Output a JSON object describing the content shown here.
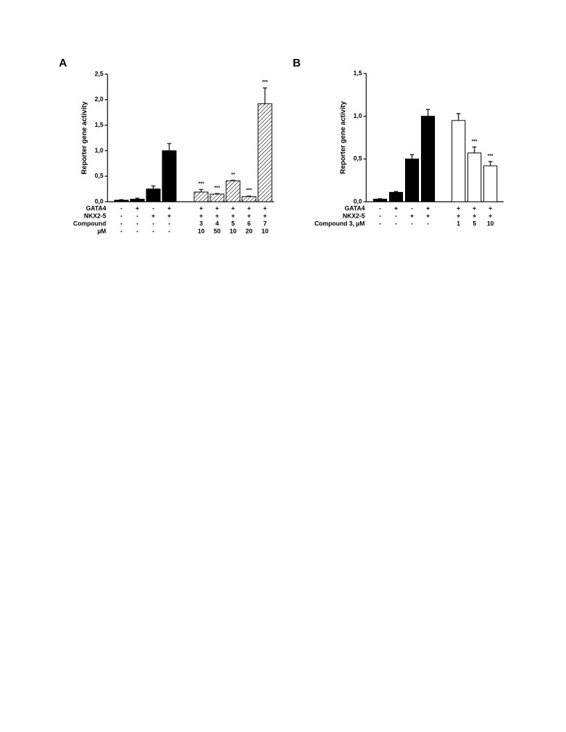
{
  "chart_data": [
    {
      "type": "bar",
      "panel": "A",
      "y_label": "Reporter gene activity",
      "ylim": [
        0,
        2.5
      ],
      "yticks": [
        {
          "value": 0,
          "label": "0,0"
        },
        {
          "value": 0.5,
          "label": "0,5"
        },
        {
          "value": 1,
          "label": "1,0"
        },
        {
          "value": 1.5,
          "label": "1,5"
        },
        {
          "value": 2,
          "label": "2,0"
        },
        {
          "value": 2.5,
          "label": "2,5"
        }
      ],
      "values": [
        0.03,
        0.05,
        0.25,
        1.0,
        0.19,
        0.15,
        0.41,
        0.1,
        1.92
      ],
      "errors": [
        0.01,
        0.02,
        0.06,
        0.14,
        0.05,
        0.01,
        0.01,
        0.01,
        0.31
      ],
      "fills": [
        "black",
        "black",
        "black",
        "black",
        "hatch",
        "hatch",
        "hatch",
        "hatch",
        "hatch"
      ],
      "significance": [
        null,
        null,
        null,
        null,
        "***",
        "***",
        "**",
        "***",
        "***"
      ],
      "rows": [
        {
          "label": "GATA4",
          "values": [
            "-",
            "+",
            "-",
            "+",
            "+",
            "+",
            "+",
            "+",
            "+"
          ]
        },
        {
          "label": "NKX2-5",
          "values": [
            "-",
            "-",
            "+",
            "+",
            "+",
            "+",
            "+",
            "+",
            "+"
          ]
        },
        {
          "label": "Compound",
          "values": [
            "-",
            "-",
            "-",
            "-",
            "3",
            "4",
            "5",
            "6",
            "7"
          ]
        },
        {
          "label": "µM",
          "values": [
            "-",
            "-",
            "-",
            "-",
            "10",
            "50",
            "10",
            "20",
            "10"
          ]
        }
      ]
    },
    {
      "type": "bar",
      "panel": "B",
      "y_label": "Reporter gene activity",
      "ylim": [
        0,
        1.5
      ],
      "yticks": [
        {
          "value": 0,
          "label": "0,0"
        },
        {
          "value": 0.5,
          "label": "0,5"
        },
        {
          "value": 1,
          "label": "1,0"
        },
        {
          "value": 1.5,
          "label": "1,5"
        }
      ],
      "values": [
        0.03,
        0.11,
        0.5,
        1.0,
        0.95,
        0.57,
        0.42
      ],
      "errors": [
        0.005,
        0.01,
        0.05,
        0.08,
        0.08,
        0.07,
        0.05
      ],
      "fills": [
        "black",
        "black",
        "black",
        "black",
        "white",
        "white",
        "white"
      ],
      "significance": [
        null,
        null,
        null,
        null,
        null,
        "***",
        "***"
      ],
      "rows": [
        {
          "label": "GATA4",
          "values": [
            "-",
            "+",
            "-",
            "+",
            "+",
            "+",
            "+"
          ]
        },
        {
          "label": "NKX2-5",
          "values": [
            "-",
            "-",
            "+",
            "+",
            "+",
            "+",
            "+"
          ]
        },
        {
          "label": "Compound 3, µM",
          "values": [
            "-",
            "-",
            "-",
            "-",
            "1",
            "5",
            "10"
          ]
        }
      ]
    }
  ]
}
